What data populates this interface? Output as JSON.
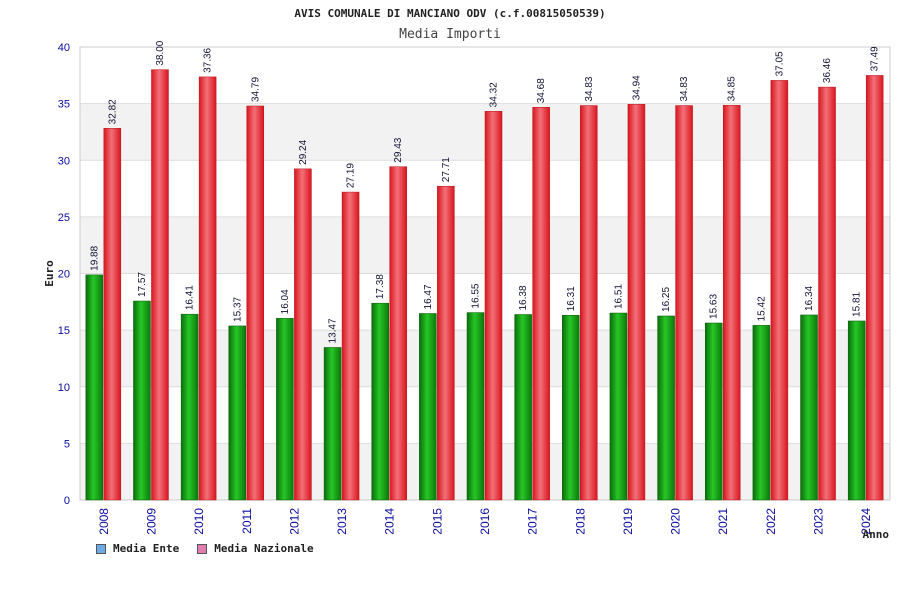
{
  "chart_data": {
    "type": "bar",
    "title": "AVIS COMUNALE DI MANCIANO ODV (c.f.00815050539)",
    "subtitle": "Media Importi",
    "xlabel": "Anno",
    "ylabel": "Euro",
    "ylim": [
      0,
      40
    ],
    "yticks": [
      "0",
      "5",
      "10",
      "15",
      "20",
      "25",
      "30",
      "35",
      "40"
    ],
    "grid": true,
    "legend_position": "bottom-left",
    "categories": [
      "2008",
      "2009",
      "2010",
      "2011",
      "2012",
      "2013",
      "2014",
      "2015",
      "2016",
      "2017",
      "2018",
      "2019",
      "2020",
      "2021",
      "2022",
      "2023",
      "2024"
    ],
    "series": [
      {
        "name": "Media Ente",
        "legend_color": "#6fa8e6",
        "bar_color": "#14a814",
        "values": [
          19.88,
          17.57,
          16.41,
          15.37,
          16.04,
          13.47,
          17.38,
          16.47,
          16.55,
          16.38,
          16.31,
          16.51,
          16.25,
          15.63,
          15.42,
          16.34,
          15.81
        ],
        "labels": [
          "19.88",
          "17.57",
          "16.41",
          "15.37",
          "16.04",
          "13.47",
          "17.38",
          "16.47",
          "16.55",
          "16.38",
          "16.31",
          "16.51",
          "16.25",
          "15.63",
          "15.42",
          "16.34",
          "15.81"
        ]
      },
      {
        "name": "Media Nazionale",
        "legend_color": "#e07fb0",
        "bar_color": "#e8303a",
        "values": [
          32.82,
          38.0,
          37.36,
          34.79,
          29.24,
          27.19,
          29.43,
          27.71,
          34.32,
          34.68,
          34.83,
          34.94,
          34.83,
          34.85,
          37.05,
          36.46,
          37.49
        ],
        "labels": [
          "32.82",
          "38.00",
          "37.36",
          "34.79",
          "29.24",
          "27.19",
          "29.43",
          "27.71",
          "34.32",
          "34.68",
          "34.83",
          "34.94",
          "34.83",
          "34.85",
          "37.05",
          "36.46",
          "37.49"
        ]
      }
    ]
  }
}
